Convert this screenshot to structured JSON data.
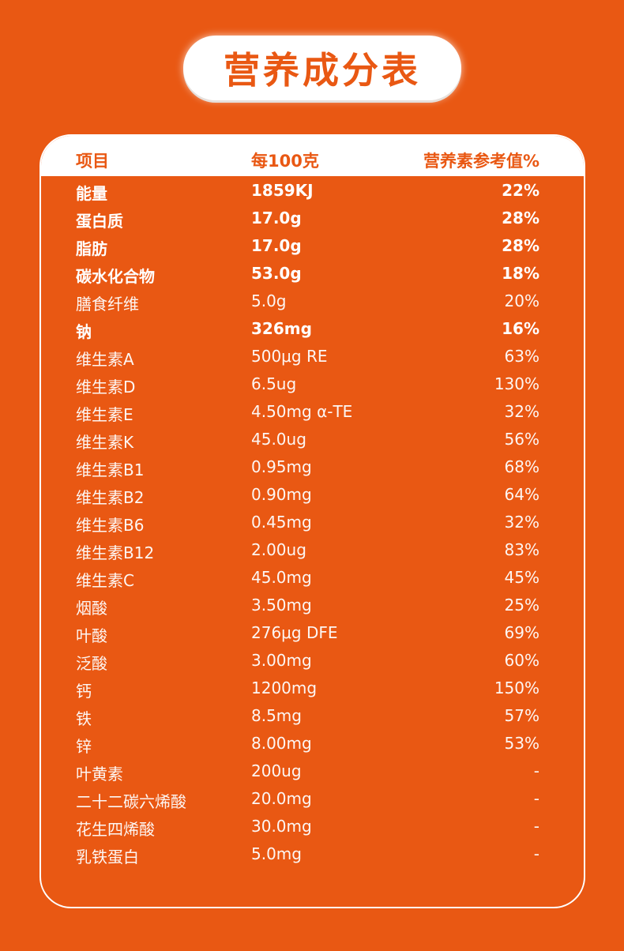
{
  "title": "营养成分表",
  "headers": [
    "项目",
    "每100克",
    "营养素参考值%"
  ],
  "rows": [
    {
      "name": "能量",
      "amount": "1859KJ",
      "nrv": "22%",
      "bold": true
    },
    {
      "name": "蛋白质",
      "amount": "17.0g",
      "nrv": "28%",
      "bold": true
    },
    {
      "name": "脂肪",
      "amount": "17.0g",
      "nrv": "28%",
      "bold": true
    },
    {
      "name": "碳水化合物",
      "amount": "53.0g",
      "nrv": "18%",
      "bold": true
    },
    {
      "name": "膳食纤维",
      "amount": "5.0g",
      "nrv": "20%",
      "bold": false
    },
    {
      "name": "钠",
      "amount": "326mg",
      "nrv": "16%",
      "bold": true
    },
    {
      "name": "维生素A",
      "amount": "500μg RE",
      "nrv": "63%",
      "bold": false
    },
    {
      "name": "维生素D",
      "amount": "6.5ug",
      "nrv": "130%",
      "bold": false
    },
    {
      "name": "维生素E",
      "amount": "4.50mg α-TE",
      "nrv": "32%",
      "bold": false
    },
    {
      "name": "维生素K",
      "amount": "45.0ug",
      "nrv": "56%",
      "bold": false
    },
    {
      "name": "维生素B1",
      "amount": "0.95mg",
      "nrv": "68%",
      "bold": false
    },
    {
      "name": "维生素B2",
      "amount": "0.90mg",
      "nrv": "64%",
      "bold": false
    },
    {
      "name": "维生素B6",
      "amount": "0.45mg",
      "nrv": "32%",
      "bold": false
    },
    {
      "name": "维生素B12",
      "amount": "2.00ug",
      "nrv": "83%",
      "bold": false
    },
    {
      "name": "维生素C",
      "amount": "45.0mg",
      "nrv": "45%",
      "bold": false
    },
    {
      "name": "烟酸",
      "amount": "3.50mg",
      "nrv": "25%",
      "bold": false
    },
    {
      "name": "叶酸",
      "amount": "276μg DFE",
      "nrv": "69%",
      "bold": false
    },
    {
      "name": "泛酸",
      "amount": "3.00mg",
      "nrv": "60%",
      "bold": false
    },
    {
      "name": "钙",
      "amount": "1200mg",
      "nrv": "150%",
      "bold": false
    },
    {
      "name": "铁",
      "amount": "8.5mg",
      "nrv": "57%",
      "bold": false
    },
    {
      "name": "锌",
      "amount": "8.00mg",
      "nrv": "53%",
      "bold": false
    },
    {
      "name": "叶黄素",
      "amount": "200ug",
      "nrv": "-",
      "bold": false
    },
    {
      "name": "二十二碳六烯酸",
      "amount": "20.0mg",
      "nrv": "-",
      "bold": false
    },
    {
      "name": "花生四烯酸",
      "amount": "30.0mg",
      "nrv": "-",
      "bold": false
    },
    {
      "name": "乳铁蛋白",
      "amount": "5.0mg",
      "nrv": "-",
      "bold": false
    }
  ],
  "colors": {
    "background": "#E95813",
    "header_bg": "#FFFFFF",
    "text": "#FFFFFF"
  }
}
